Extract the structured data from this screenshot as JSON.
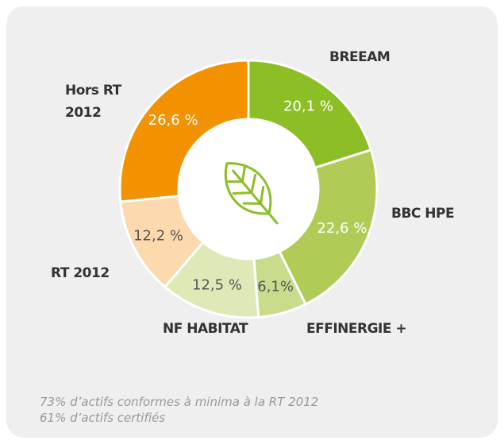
{
  "chart_data": {
    "type": "donut",
    "categories": [
      "BREEAM",
      "BBC HPE",
      "EFFINERGIE +",
      "NF HABITAT",
      "RT 2012",
      "Hors RT 2012"
    ],
    "values": [
      20.1,
      22.6,
      6.1,
      12.5,
      12.2,
      26.6
    ],
    "value_labels": [
      "20,1 %",
      "22,6 %",
      "6,1%",
      "12,5 %",
      "12,2 %",
      "26,6 %"
    ],
    "colors": [
      "#8cbf26",
      "#b0cc57",
      "#c8dc8c",
      "#dfe9b8",
      "#fdd9ae",
      "#f39200"
    ],
    "notes": [
      "73% d’actifs conformes à minima à la RT 2012",
      "61% d’actifs certifiés"
    ]
  }
}
